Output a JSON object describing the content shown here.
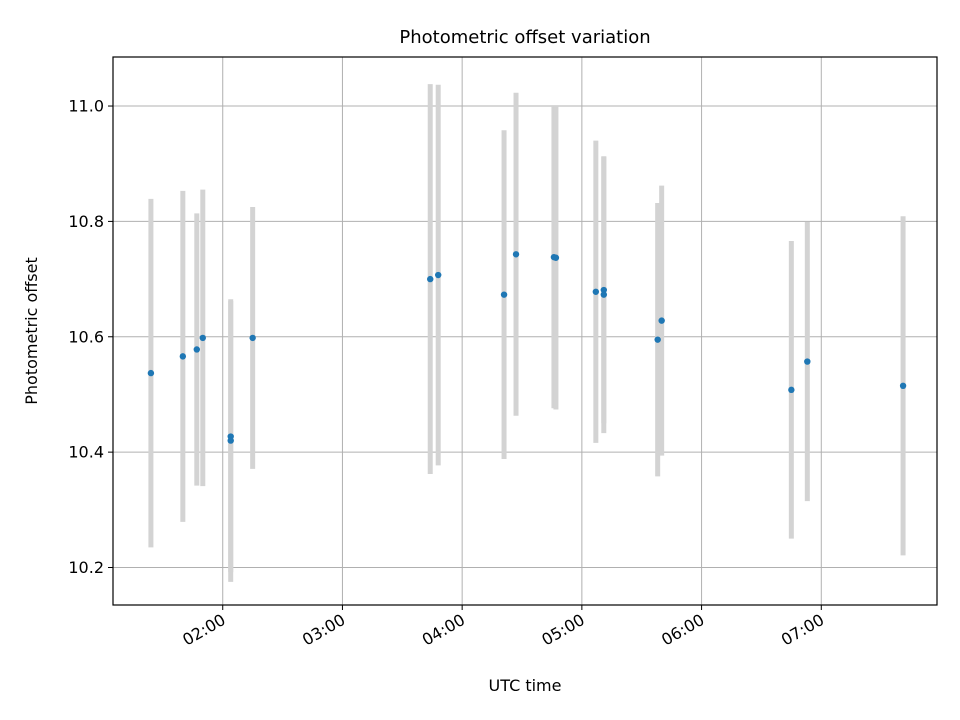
{
  "chart_data": {
    "type": "scatter",
    "title": "Photometric offset variation",
    "xlabel": "UTC time",
    "ylabel": "Photometric offset",
    "grid": true,
    "xlim": [
      "01:05",
      "07:58"
    ],
    "ylim": [
      10.135,
      11.085
    ],
    "x_ticks": [
      "02:00",
      "03:00",
      "04:00",
      "05:00",
      "06:00",
      "07:00"
    ],
    "y_ticks": [
      "10.2",
      "10.4",
      "10.6",
      "10.8",
      "11.0"
    ],
    "colors": {
      "points": "#1f77b4",
      "errorbars": "#d3d3d3",
      "grid": "#b0b0b0"
    },
    "points": [
      {
        "x": "01:24",
        "y": 10.537,
        "yerr": 0.302
      },
      {
        "x": "01:40",
        "y": 10.566,
        "yerr": 0.287
      },
      {
        "x": "01:47",
        "y": 10.578,
        "yerr": 0.236
      },
      {
        "x": "01:50",
        "y": 10.598,
        "yerr": 0.257
      },
      {
        "x": "02:04",
        "y": 10.427,
        "yerr": 0.235
      },
      {
        "x": "02:04",
        "y": 10.42,
        "yerr": 0.245
      },
      {
        "x": "02:15",
        "y": 10.598,
        "yerr": 0.227
      },
      {
        "x": "03:44",
        "y": 10.7,
        "yerr": 0.338
      },
      {
        "x": "03:48",
        "y": 10.707,
        "yerr": 0.33
      },
      {
        "x": "04:21",
        "y": 10.673,
        "yerr": 0.285
      },
      {
        "x": "04:27",
        "y": 10.743,
        "yerr": 0.28
      },
      {
        "x": "04:46",
        "y": 10.738,
        "yerr": 0.262
      },
      {
        "x": "04:47",
        "y": 10.737,
        "yerr": 0.263
      },
      {
        "x": "05:07",
        "y": 10.678,
        "yerr": 0.262
      },
      {
        "x": "05:11",
        "y": 10.673,
        "yerr": 0.24
      },
      {
        "x": "05:11",
        "y": 10.681,
        "yerr": 0.231
      },
      {
        "x": "05:38",
        "y": 10.595,
        "yerr": 0.237
      },
      {
        "x": "05:40",
        "y": 10.628,
        "yerr": 0.234
      },
      {
        "x": "06:45",
        "y": 10.508,
        "yerr": 0.258
      },
      {
        "x": "06:53",
        "y": 10.557,
        "yerr": 0.242
      },
      {
        "x": "07:41",
        "y": 10.515,
        "yerr": 0.294
      }
    ]
  }
}
